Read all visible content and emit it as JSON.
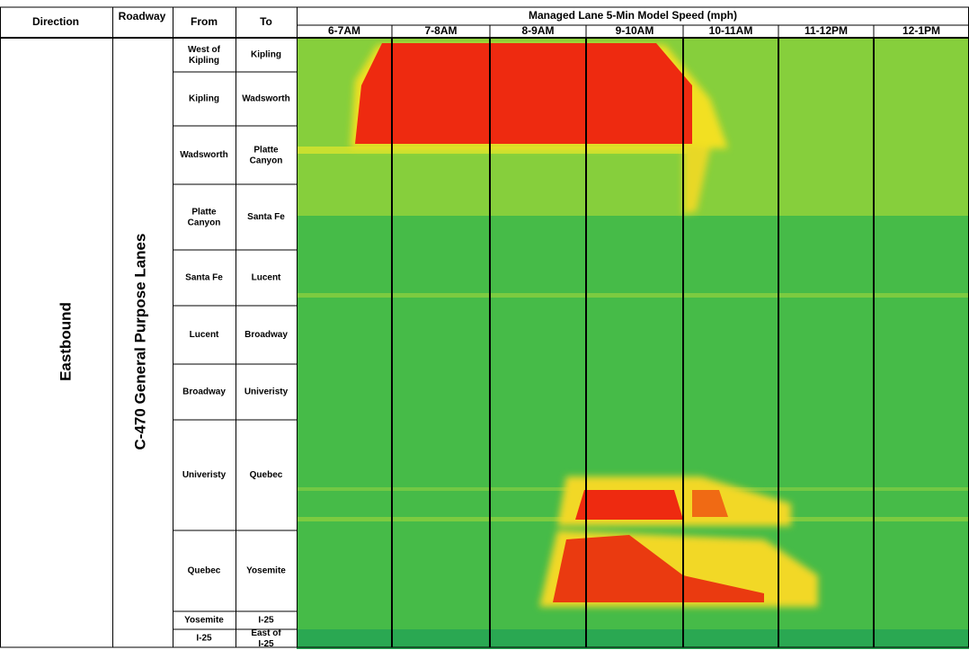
{
  "header": {
    "direction": "Direction",
    "roadway": "Roadway",
    "from": "From",
    "to": "To",
    "speed_title": "Managed Lane 5-Min Model Speed (mph)",
    "hours": [
      "6-7AM",
      "7-8AM",
      "8-9AM",
      "9-10AM",
      "10-11AM",
      "11-12PM",
      "12-1PM"
    ]
  },
  "direction": "Eastbound",
  "roadway": "C-470 General Purpose Lanes",
  "rows": [
    [
      "West of Kipling",
      "Kipling"
    ],
    [
      "Kipling",
      "Wadsworth"
    ],
    [
      "Wadsworth",
      "Platte Canyon"
    ],
    [
      "Platte Canyon",
      "Santa Fe"
    ],
    [
      "Santa Fe",
      "Lucent"
    ],
    [
      "Lucent",
      "Broadway"
    ],
    [
      "Broadway",
      "Univeristy"
    ],
    [
      "Univeristy",
      "Quebec"
    ],
    [
      "Quebec",
      "Yosemite"
    ],
    [
      "Yosemite",
      "I-25"
    ],
    [
      "I-25",
      "East of I-25"
    ]
  ]
}
